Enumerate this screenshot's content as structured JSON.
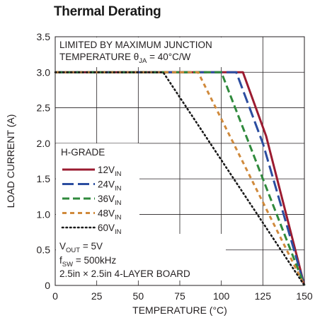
{
  "page": {
    "title": "Thermal Derating"
  },
  "chart_data": {
    "type": "line",
    "title": "Thermal Derating",
    "xlabel": "TEMPERATURE (°C)",
    "ylabel": "LOAD CURRENT (A)",
    "xlim": [
      0,
      150
    ],
    "ylim": [
      0,
      3.5
    ],
    "xticks": [
      0,
      25,
      50,
      75,
      100,
      125,
      150
    ],
    "yticks": [
      0,
      0.5,
      1.0,
      1.5,
      2.0,
      2.5,
      3.0,
      3.5
    ],
    "xtick_labels": [
      "0",
      "25",
      "50",
      "75",
      "100",
      "125",
      "150"
    ],
    "ytick_labels": [
      "0",
      "0.5",
      "1.0",
      "1.5",
      "2.0",
      "2.5",
      "3.0",
      "3.5"
    ],
    "grid": true,
    "annotations": [
      {
        "name": "limit-note-line1",
        "text": "LIMITED BY MAXIMUM JUNCTION"
      },
      {
        "name": "limit-note-line2",
        "text": "TEMPERATURE θJA = 40°C/W"
      },
      {
        "name": "conditions-vout",
        "text": "VOUT = 5V"
      },
      {
        "name": "conditions-fsw",
        "text": "fSW = 500kHz"
      },
      {
        "name": "conditions-board",
        "text": "2.5in × 2.5in 4-LAYER BOARD"
      }
    ],
    "legend": {
      "title": "H-GRADE",
      "placement": "left"
    },
    "series": [
      {
        "name": "12VIN",
        "color": "#9b1b30",
        "dash": "solid",
        "x": [
          0,
          113,
          127,
          150
        ],
        "y": [
          3.0,
          3.0,
          2.1,
          0
        ]
      },
      {
        "name": "24VIN",
        "color": "#2b4da0",
        "dash": "long-dash",
        "x": [
          0,
          109,
          125,
          150
        ],
        "y": [
          3.0,
          3.0,
          2.0,
          0
        ]
      },
      {
        "name": "36VIN",
        "color": "#2f8a3c",
        "dash": "dash",
        "x": [
          0,
          100,
          150
        ],
        "y": [
          3.0,
          3.0,
          0
        ]
      },
      {
        "name": "48VIN",
        "color": "#d08a3c",
        "dash": "short-dash",
        "x": [
          0,
          86,
          150
        ],
        "y": [
          3.0,
          3.0,
          0
        ]
      },
      {
        "name": "60VIN",
        "color": "#1a1a1a",
        "dash": "dotted",
        "x": [
          0,
          65,
          150
        ],
        "y": [
          3.0,
          3.0,
          0
        ]
      }
    ]
  }
}
